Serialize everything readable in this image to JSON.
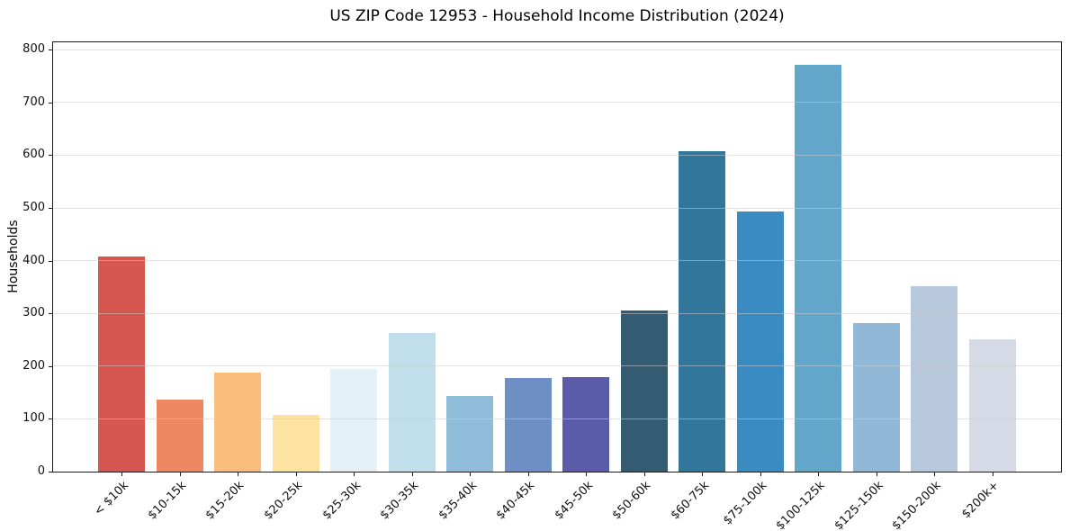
{
  "figure": {
    "title": "US ZIP Code 12953 - Household Income Distribution (2024)"
  },
  "chart_data": {
    "type": "bar",
    "title": "US ZIP Code 12953 - Household Income Distribution (2024)",
    "xlabel": "",
    "ylabel": "Households",
    "categories": [
      "< $10k",
      "$10-15k",
      "$15-20k",
      "$20-25k",
      "$25-30k",
      "$30-35k",
      "$35-40k",
      "$40-45k",
      "$45-50k",
      "$50-60k",
      "$60-75k",
      "$75-100k",
      "$100-125k",
      "$125-150k",
      "$150-200k",
      "$200k+"
    ],
    "values": [
      408,
      137,
      187,
      107,
      194,
      263,
      144,
      178,
      179,
      305,
      608,
      494,
      771,
      282,
      352,
      251
    ],
    "bar_colors": [
      "#d5554f",
      "#f08763",
      "#fbbd7c",
      "#fde3a1",
      "#e4f1f7",
      "#c0dfeb",
      "#8fbcd9",
      "#6d8fc3",
      "#5a5caa",
      "#335c72",
      "#33769b",
      "#3a8bc2",
      "#62a7c9",
      "#92b8d8",
      "#b9c9dd",
      "#d6d9e6"
    ],
    "ylim": [
      0,
      814
    ],
    "yticks": [
      0,
      100,
      200,
      300,
      400,
      500,
      600,
      700,
      800
    ],
    "grid": "horizontal",
    "legend": "none"
  },
  "style": {
    "background": "#ffffff",
    "spine_color": "#1a1a1a",
    "grid_color": "#cbcbcb",
    "text_color": "#111111"
  }
}
